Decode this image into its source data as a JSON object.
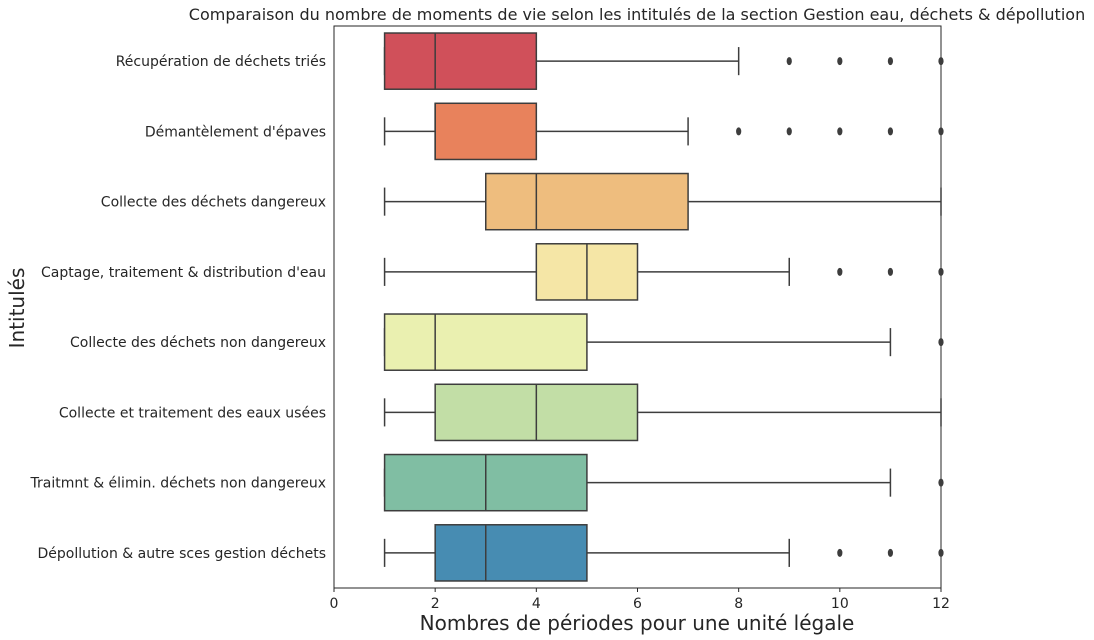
{
  "chart_data": {
    "type": "boxplot",
    "orientation": "horizontal",
    "title": "Comparaison du nombre de moments de vie selon les intitulés de la section Gestion eau, déchets & dépollution",
    "xlabel": "Nombres de périodes pour une unité légale",
    "ylabel": "Intitulés",
    "xlim": [
      0,
      12
    ],
    "xticks": [
      0,
      2,
      4,
      6,
      8,
      10,
      12
    ],
    "grid": false,
    "series": [
      {
        "label": "Récupération de déchets triés",
        "color": "#d0505a",
        "whisker_low": 1,
        "q1": 1,
        "median": 2,
        "q3": 4,
        "whisker_high": 8,
        "outliers": [
          9,
          10,
          11,
          12
        ]
      },
      {
        "label": "Démantèlement d'épaves",
        "color": "#e8825c",
        "whisker_low": 1,
        "q1": 2,
        "median": 2,
        "q3": 4,
        "whisker_high": 7,
        "outliers": [
          8,
          9,
          10,
          11,
          12
        ]
      },
      {
        "label": "Collecte des déchets dangereux",
        "color": "#eebd7e",
        "whisker_low": 1,
        "q1": 3,
        "median": 4,
        "q3": 7,
        "whisker_high": 12,
        "outliers": []
      },
      {
        "label": "Captage, traitement & distribution d'eau",
        "color": "#f5e6a6",
        "whisker_low": 1,
        "q1": 4,
        "median": 5,
        "q3": 6,
        "whisker_high": 9,
        "outliers": [
          10,
          11,
          12
        ]
      },
      {
        "label": "Collecte des déchets non dangereux",
        "color": "#eaf0b0",
        "whisker_low": 1,
        "q1": 1,
        "median": 2,
        "q3": 5,
        "whisker_high": 11,
        "outliers": [
          12
        ]
      },
      {
        "label": "Collecte et traitement des eaux usées",
        "color": "#c2dea6",
        "whisker_low": 1,
        "q1": 2,
        "median": 4,
        "q3": 6,
        "whisker_high": 12,
        "outliers": []
      },
      {
        "label": "Traitmnt & élimin. déchets non dangereux",
        "color": "#80bea3",
        "whisker_low": 1,
        "q1": 1,
        "median": 3,
        "q3": 5,
        "whisker_high": 11,
        "outliers": [
          12
        ]
      },
      {
        "label": "Dépollution & autre sces gestion déchets",
        "color": "#478cb2",
        "whisker_low": 1,
        "q1": 2,
        "median": 3,
        "q3": 5,
        "whisker_high": 9,
        "outliers": [
          10,
          11,
          12
        ]
      }
    ]
  }
}
